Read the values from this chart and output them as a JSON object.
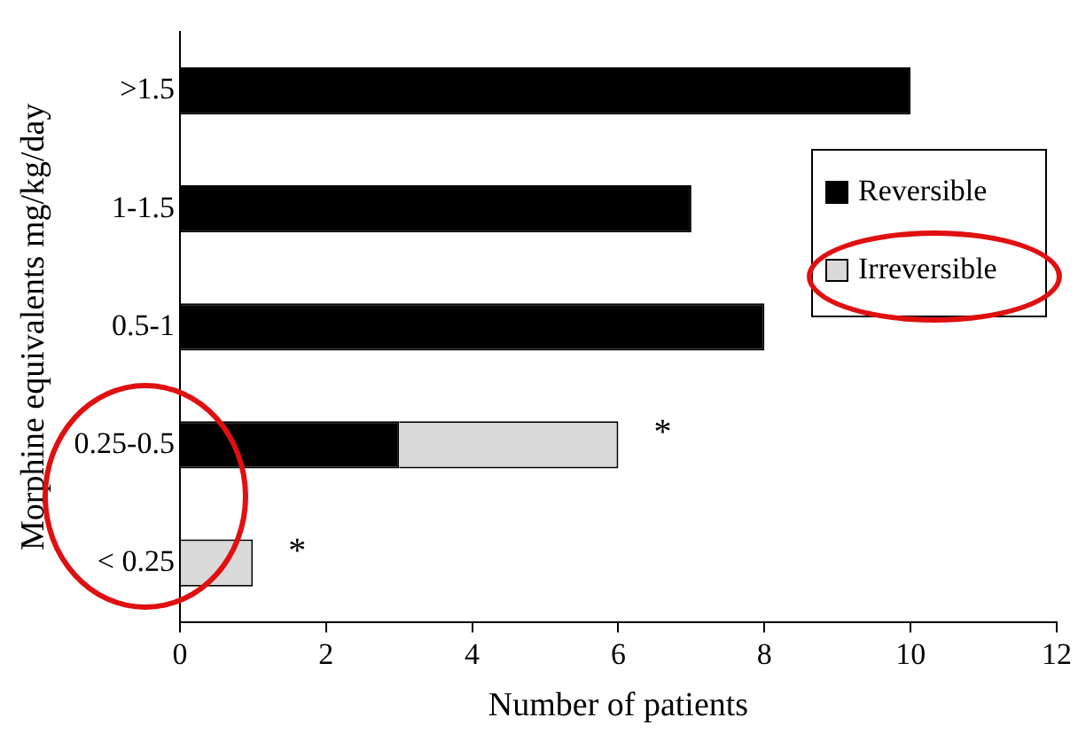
{
  "chart_data": {
    "type": "bar",
    "orientation": "horizontal",
    "stacked": true,
    "xlabel": "Number of patients",
    "ylabel": "Morphine equivalents mg/kg/day",
    "categories": [
      ">1.5",
      "1-1.5",
      "0.5-1",
      "0.25-0.5",
      "< 0.25"
    ],
    "series": [
      {
        "name": "Reversible",
        "color": "#000000",
        "values": [
          10,
          7,
          8,
          3,
          0
        ]
      },
      {
        "name": "Irreversible",
        "color": "#d9d9d9",
        "values": [
          0,
          0,
          0,
          3,
          1
        ]
      }
    ],
    "xlim": [
      0,
      12
    ],
    "xticks": [
      0,
      2,
      4,
      6,
      8,
      10,
      12
    ],
    "grid": false,
    "legend": "right",
    "annotations": [
      {
        "text": "*",
        "x": 6,
        "y": "0.25-0.5"
      },
      {
        "text": "*",
        "x": 1,
        "y": "< 0.25"
      }
    ]
  }
}
